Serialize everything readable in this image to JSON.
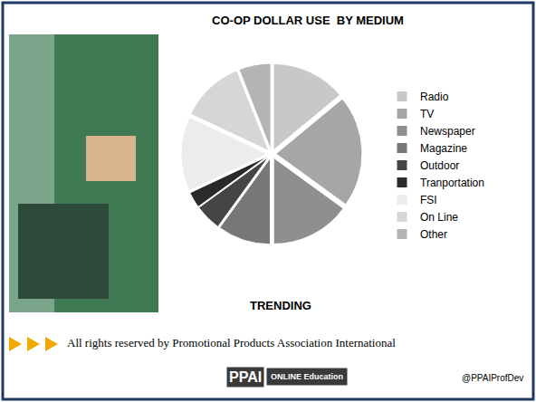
{
  "chart_data": {
    "type": "pie",
    "title": "CO-OP DOLLAR USE  BY MEDIUM",
    "categories": [
      "Radio",
      "TV",
      "Newspaper",
      "Magazine",
      "Outdoor",
      "Tranportation",
      "FSI",
      "On Line",
      "Other"
    ],
    "values": [
      14,
      21,
      15,
      10,
      5,
      3,
      14,
      12,
      6
    ],
    "colors": [
      "#c8c8c8",
      "#a6a6a6",
      "#8f8f8f",
      "#777777",
      "#454545",
      "#2a2a2a",
      "#ececec",
      "#d6d6d6",
      "#b4b4b4"
    ],
    "legend": "right",
    "annotations": [
      "TRENDING"
    ]
  },
  "footer": {
    "copyright": "All rights reserved by Promotional Products Association International",
    "logo": "PPAI",
    "logo_tagline": "ONLINE Education",
    "twitter": "@PPAIProfDev"
  }
}
